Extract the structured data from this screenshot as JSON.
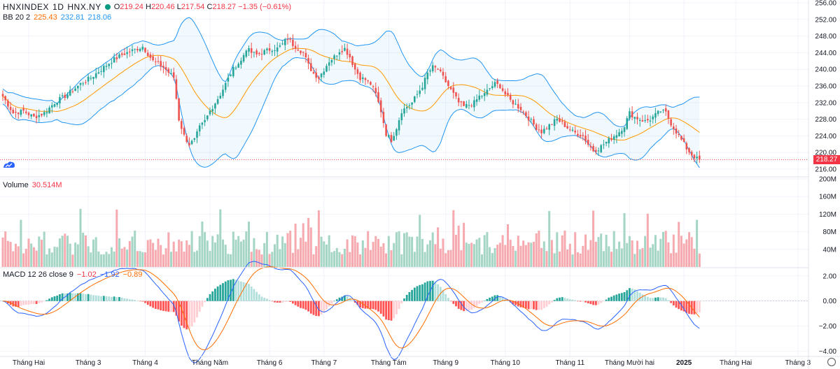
{
  "header": {
    "symbol": "HNXINDEX",
    "interval": "1D",
    "exchange": "HNX.NY",
    "open_label": "O",
    "open": "219.24",
    "high_label": "H",
    "high": "220.46",
    "low_label": "L",
    "low": "217.54",
    "close_label": "C",
    "close": "218.27",
    "change": "−1.35 (−0.61%)"
  },
  "bb_legend": {
    "name": "BB 20 2",
    "basis": "225.43",
    "upper": "232.81",
    "lower": "218.06"
  },
  "volume_legend": {
    "name": "Volume",
    "value": "30.514M"
  },
  "macd_legend": {
    "name": "MACD 12 26 close 9",
    "hist": "−1.02",
    "macd": "−1.92",
    "signal": "−0.89"
  },
  "last_price": "218.27",
  "colors": {
    "up": "#26a69a",
    "down": "#ef5350",
    "up_vol": "#a5d6c5",
    "down_vol": "#f6a9ae",
    "bb_band": "#2196f3",
    "bb_basis": "#ff9800",
    "macd_line": "#2962ff",
    "signal_line": "#ff6d00"
  },
  "chart_data": {
    "type": "candlestick",
    "title": "HNXINDEX · 1D · HNX.NY",
    "price_axis": {
      "ylim": [
        215,
        256
      ],
      "ticks": [
        "256.00",
        "252.00",
        "248.00",
        "244.00",
        "240.00",
        "236.00",
        "232.00",
        "228.00",
        "224.00",
        "220.00",
        "216.00"
      ]
    },
    "volume_axis": {
      "ylim": [
        0,
        200
      ],
      "ticks": [
        "200M",
        "160M",
        "120M",
        "80M",
        "40M"
      ]
    },
    "macd_axis": {
      "ylim": [
        -4.3,
        2.6
      ],
      "ticks": [
        "2.00",
        "0.00",
        "−2.00",
        "−4.00"
      ]
    },
    "x_labels": [
      "Tháng Hai",
      "Tháng 3",
      "Tháng 4",
      "Tháng Năm",
      "Tháng 6",
      "Tháng 7",
      "Tháng Tám",
      "Tháng 9",
      "Tháng 10",
      "Tháng 11",
      "Tháng Mười hai",
      "2025",
      "Tháng Hai",
      "Tháng 3"
    ],
    "x_label_bars": [
      10,
      33,
      55,
      80,
      103,
      124,
      149,
      171,
      194,
      219,
      242,
      263,
      283,
      307
    ],
    "close_anchors": [
      [
        0,
        233.5
      ],
      [
        4,
        229.5
      ],
      [
        8,
        230
      ],
      [
        12,
        228.5
      ],
      [
        16,
        229.5
      ],
      [
        20,
        232
      ],
      [
        25,
        234
      ],
      [
        30,
        236.5
      ],
      [
        34,
        238
      ],
      [
        38,
        240
      ],
      [
        42,
        242
      ],
      [
        46,
        243.5
      ],
      [
        50,
        244.5
      ],
      [
        54,
        245.5
      ],
      [
        58,
        242
      ],
      [
        62,
        240.5
      ],
      [
        66,
        238
      ],
      [
        68,
        228
      ],
      [
        70,
        224
      ],
      [
        72,
        222
      ],
      [
        74,
        223
      ],
      [
        76,
        226
      ],
      [
        78,
        227.5
      ],
      [
        80,
        230
      ],
      [
        82,
        232
      ],
      [
        84,
        234
      ],
      [
        86,
        236.5
      ],
      [
        88,
        239
      ],
      [
        90,
        241
      ],
      [
        92,
        242
      ],
      [
        94,
        245
      ],
      [
        96,
        244
      ],
      [
        98,
        243.5
      ],
      [
        100,
        244
      ],
      [
        102,
        244.5
      ],
      [
        104,
        245
      ],
      [
        106,
        245
      ],
      [
        108,
        246
      ],
      [
        110,
        247.5
      ],
      [
        112,
        246
      ],
      [
        114,
        245
      ],
      [
        116,
        244
      ],
      [
        118,
        241
      ],
      [
        120,
        239
      ],
      [
        122,
        238
      ],
      [
        124,
        240
      ],
      [
        126,
        242
      ],
      [
        128,
        243
      ],
      [
        130,
        244.5
      ],
      [
        132,
        245
      ],
      [
        134,
        243
      ],
      [
        136,
        240
      ],
      [
        138,
        238
      ],
      [
        140,
        237.5
      ],
      [
        142,
        236.5
      ],
      [
        144,
        234
      ],
      [
        146,
        230
      ],
      [
        148,
        224.5
      ],
      [
        150,
        223
      ],
      [
        152,
        226
      ],
      [
        154,
        230
      ],
      [
        156,
        231
      ],
      [
        158,
        232
      ],
      [
        160,
        234
      ],
      [
        162,
        236
      ],
      [
        164,
        239
      ],
      [
        166,
        240.5
      ],
      [
        168,
        240
      ],
      [
        170,
        238
      ],
      [
        172,
        236
      ],
      [
        174,
        234
      ],
      [
        176,
        232
      ],
      [
        178,
        231
      ],
      [
        180,
        231.5
      ],
      [
        182,
        232
      ],
      [
        184,
        233.5
      ],
      [
        186,
        234
      ],
      [
        188,
        235.5
      ],
      [
        190,
        236.5
      ],
      [
        192,
        236
      ],
      [
        194,
        234
      ],
      [
        196,
        232.5
      ],
      [
        198,
        231.5
      ],
      [
        200,
        230.5
      ],
      [
        202,
        229
      ],
      [
        204,
        227.5
      ],
      [
        206,
        226
      ],
      [
        208,
        225
      ],
      [
        210,
        226
      ],
      [
        212,
        227
      ],
      [
        214,
        228
      ],
      [
        216,
        227
      ],
      [
        218,
        226
      ],
      [
        220,
        225
      ],
      [
        222,
        224.5
      ],
      [
        224,
        224
      ],
      [
        226,
        222
      ],
      [
        228,
        220.5
      ],
      [
        230,
        221
      ],
      [
        232,
        222
      ],
      [
        234,
        223
      ],
      [
        236,
        224
      ],
      [
        238,
        225
      ],
      [
        240,
        226.5
      ],
      [
        242,
        229.5
      ],
      [
        244,
        228.5
      ],
      [
        246,
        228
      ],
      [
        248,
        227.5
      ],
      [
        250,
        228
      ],
      [
        252,
        229
      ],
      [
        254,
        230
      ],
      [
        256,
        229.5
      ],
      [
        258,
        227
      ],
      [
        260,
        225
      ],
      [
        262,
        223
      ],
      [
        264,
        221
      ],
      [
        266,
        219.5
      ],
      [
        268,
        218.5
      ],
      [
        269,
        218.27
      ]
    ],
    "last_bar_ohlc": {
      "open": 219.24,
      "high": 220.46,
      "low": 217.54,
      "close": 218.27,
      "volume_m": 30.514
    },
    "indicators": {
      "bollinger": {
        "period": 20,
        "stddev": 2,
        "basis": 225.43,
        "upper": 232.81,
        "lower": 218.06
      },
      "macd": {
        "fast": 12,
        "slow": 26,
        "source": "close",
        "signal": 9,
        "histogram": -1.02,
        "macd": -1.92,
        "signal_value": -0.89
      }
    }
  }
}
